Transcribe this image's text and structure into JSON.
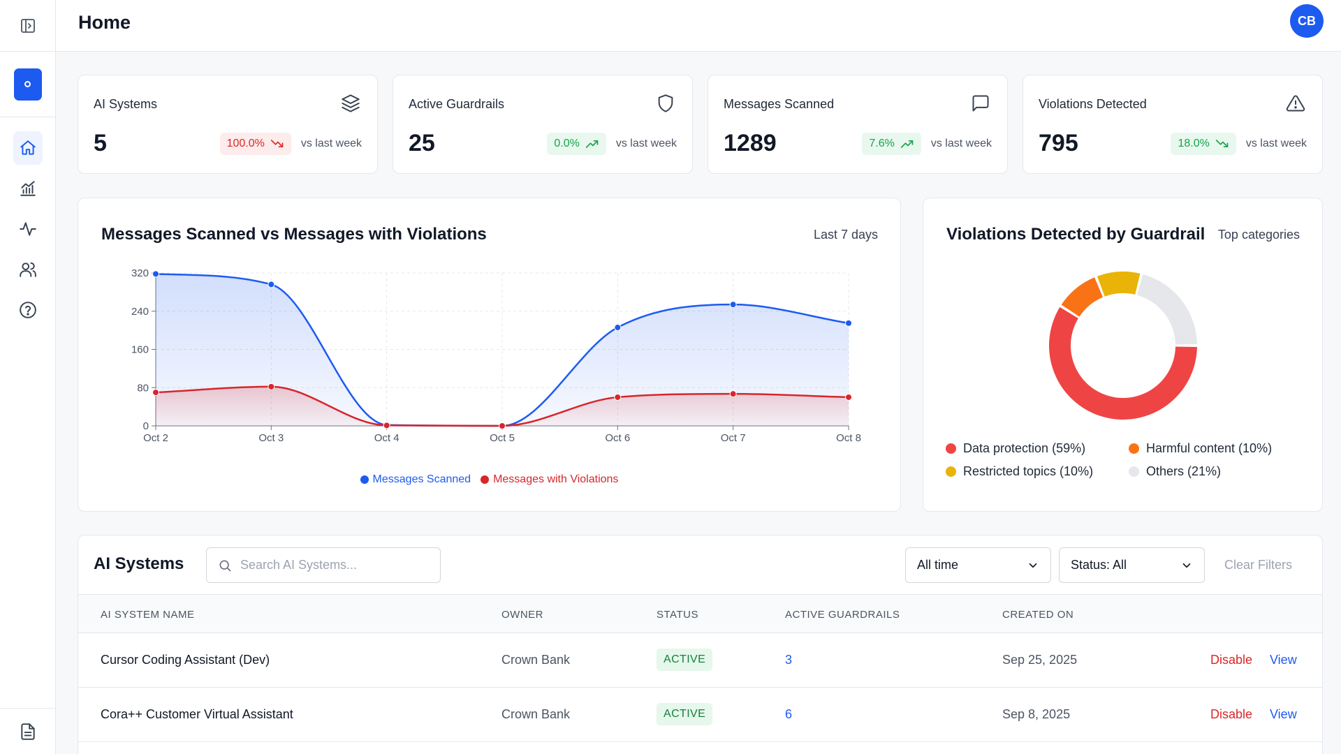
{
  "header": {
    "title": "Home",
    "avatar_initials": "CB"
  },
  "sidebar": {
    "items": [
      {
        "icon": "home-icon",
        "active": true
      },
      {
        "icon": "chart-icon",
        "active": false
      },
      {
        "icon": "activity-icon",
        "active": false
      },
      {
        "icon": "users-icon",
        "active": false
      },
      {
        "icon": "help-icon",
        "active": false
      }
    ],
    "bottom_icon": "document-icon"
  },
  "stats": [
    {
      "label": "AI Systems",
      "value": "5",
      "change": "100.0%",
      "trend": "down",
      "tone": "red",
      "compare": "vs last week",
      "icon": "layers-icon"
    },
    {
      "label": "Active Guardrails",
      "value": "25",
      "change": "0.0%",
      "trend": "up",
      "tone": "green",
      "compare": "vs last week",
      "icon": "shield-icon"
    },
    {
      "label": "Messages Scanned",
      "value": "1289",
      "change": "7.6%",
      "trend": "up",
      "tone": "green",
      "compare": "vs last week",
      "icon": "message-icon"
    },
    {
      "label": "Violations Detected",
      "value": "795",
      "change": "18.0%",
      "trend": "down",
      "tone": "green",
      "compare": "vs last week",
      "icon": "alert-icon"
    }
  ],
  "line_chart": {
    "title": "Messages Scanned vs Messages with Violations",
    "range_label": "Last 7 days"
  },
  "donut_chart": {
    "title": "Violations Detected by Guardrail",
    "subtitle": "Top categories"
  },
  "chart_data": [
    {
      "type": "line",
      "title": "Messages Scanned vs Messages with Violations",
      "x": [
        "Oct 2",
        "Oct 3",
        "Oct 4",
        "Oct 5",
        "Oct 6",
        "Oct 7",
        "Oct 8"
      ],
      "yticks": [
        0,
        80,
        160,
        240,
        320
      ],
      "ylim": [
        0,
        320
      ],
      "grid": true,
      "legend": "bottom-center",
      "series": [
        {
          "name": "Messages Scanned",
          "color": "#1d5bf0",
          "values": [
            318,
            296,
            2,
            0,
            206,
            254,
            215
          ]
        },
        {
          "name": "Messages with Violations",
          "color": "#d7262c",
          "values": [
            70,
            82,
            1,
            0,
            60,
            67,
            60
          ]
        }
      ]
    },
    {
      "type": "pie",
      "title": "Violations Detected by Guardrail",
      "legend": "bottom",
      "slices": [
        {
          "label": "Data protection (59%)",
          "value": 59,
          "color": "#ef4444"
        },
        {
          "label": "Harmful content (10%)",
          "value": 10,
          "color": "#f97316"
        },
        {
          "label": "Restricted topics (10%)",
          "value": 10,
          "color": "#eab308"
        },
        {
          "label": "Others (21%)",
          "value": 21,
          "color": "#e5e7eb"
        }
      ]
    }
  ],
  "table": {
    "title": "AI Systems",
    "search_placeholder": "Search AI Systems...",
    "filter_time": "All time",
    "filter_status": "Status: All",
    "clear_label": "Clear Filters",
    "columns": [
      "AI SYSTEM NAME",
      "OWNER",
      "STATUS",
      "ACTIVE GUARDRAILS",
      "CREATED ON"
    ],
    "rows": [
      {
        "name": "Cursor Coding Assistant (Dev)",
        "owner": "Crown Bank",
        "status": "ACTIVE",
        "guardrails": "3",
        "created": "Sep 25, 2025",
        "disable": "Disable",
        "view": "View"
      },
      {
        "name": "Cora++ Customer Virtual Assistant",
        "owner": "Crown Bank",
        "status": "ACTIVE",
        "guardrails": "6",
        "created": "Sep 8, 2025",
        "disable": "Disable",
        "view": "View"
      }
    ]
  }
}
